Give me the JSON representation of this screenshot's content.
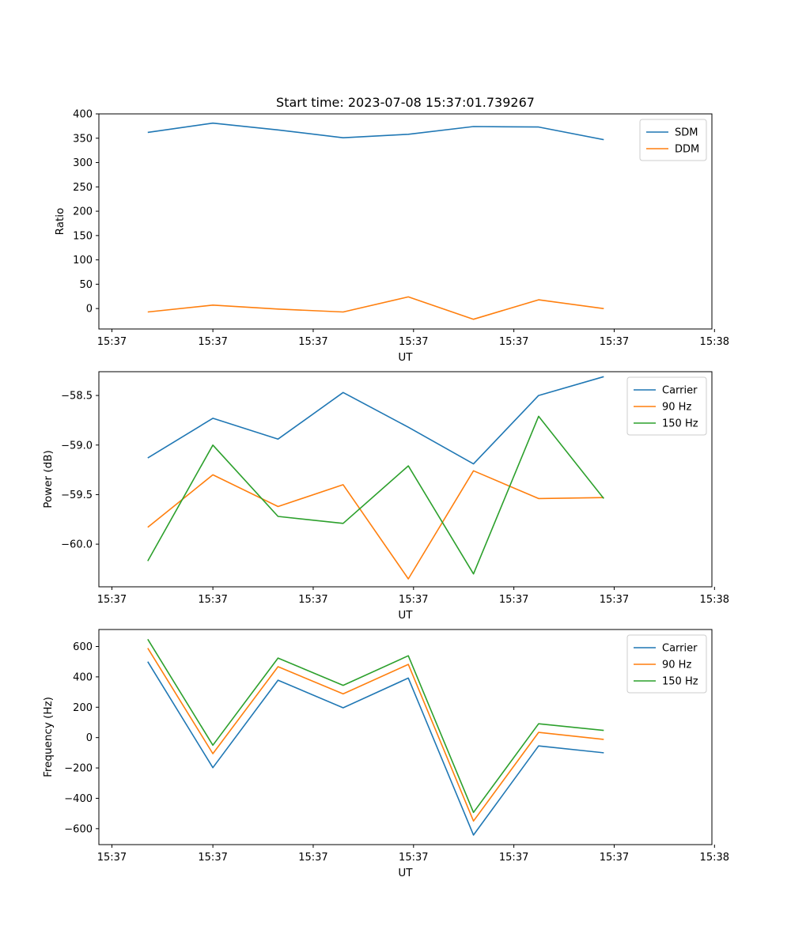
{
  "chart_data": [
    {
      "type": "line",
      "title": "Start time: 2023-07-08 15:37:01.739267",
      "xlabel": "UT",
      "ylabel": "Ratio",
      "x_tick_labels": [
        "15:37",
        "15:37",
        "15:37",
        "15:37",
        "15:37",
        "15:37",
        "15:38"
      ],
      "x": [
        1,
        2,
        3,
        4,
        5,
        6,
        7,
        8
      ],
      "xlim": [
        0.25,
        9.66
      ],
      "ylim": [
        -42,
        400
      ],
      "yticks": [
        0,
        50,
        100,
        150,
        200,
        250,
        300,
        350,
        400
      ],
      "ytick_labels": [
        "0",
        "50",
        "100",
        "150",
        "200",
        "250",
        "300",
        "350",
        "400"
      ],
      "legend_position": "top-right",
      "series": [
        {
          "name": "SDM",
          "color": "#1f77b4",
          "values": [
            362,
            381,
            367,
            351,
            358,
            374,
            373,
            347
          ]
        },
        {
          "name": "DDM",
          "color": "#ff7f0e",
          "values": [
            -7,
            7,
            -1,
            -7,
            24,
            -22,
            18,
            0
          ]
        }
      ]
    },
    {
      "type": "line",
      "title": "",
      "xlabel": "UT",
      "ylabel": "Power (dB)",
      "x_tick_labels": [
        "15:37",
        "15:37",
        "15:37",
        "15:37",
        "15:37",
        "15:37",
        "15:38"
      ],
      "x": [
        1,
        2,
        3,
        4,
        5,
        6,
        7,
        8
      ],
      "xlim": [
        0.25,
        9.66
      ],
      "ylim": [
        -60.43,
        -58.26
      ],
      "yticks": [
        -60.0,
        -59.5,
        -59.0,
        -58.5
      ],
      "ytick_labels": [
        "−60.0",
        "−59.5",
        "−59.0",
        "−58.5"
      ],
      "legend_position": "top-right",
      "series": [
        {
          "name": "Carrier",
          "color": "#1f77b4",
          "values": [
            -59.13,
            -58.73,
            -58.94,
            -58.47,
            -58.82,
            -59.19,
            -58.5,
            -58.31
          ]
        },
        {
          "name": "90 Hz",
          "color": "#ff7f0e",
          "values": [
            -59.83,
            -59.3,
            -59.62,
            -59.4,
            -60.35,
            -59.26,
            -59.54,
            -59.53
          ]
        },
        {
          "name": "150 Hz",
          "color": "#2ca02c",
          "values": [
            -60.17,
            -59.0,
            -59.72,
            -59.79,
            -59.21,
            -60.3,
            -58.71,
            -59.54
          ]
        }
      ]
    },
    {
      "type": "line",
      "title": "",
      "xlabel": "UT",
      "ylabel": "Frequency (Hz)",
      "x_tick_labels": [
        "15:37",
        "15:37",
        "15:37",
        "15:37",
        "15:37",
        "15:37",
        "15:38"
      ],
      "x": [
        1,
        2,
        3,
        4,
        5,
        6,
        7,
        8
      ],
      "xlim": [
        0.25,
        9.66
      ],
      "ylim": [
        -705,
        712
      ],
      "yticks": [
        -600,
        -400,
        -200,
        0,
        200,
        400,
        600
      ],
      "ytick_labels": [
        "−600",
        "−400",
        "−200",
        "0",
        "200",
        "400",
        "600"
      ],
      "legend_position": "top-right",
      "series": [
        {
          "name": "Carrier",
          "color": "#1f77b4",
          "values": [
            500,
            -198,
            378,
            196,
            392,
            -642,
            -55,
            -100
          ]
        },
        {
          "name": "90 Hz",
          "color": "#ff7f0e",
          "values": [
            589,
            -106,
            467,
            288,
            482,
            -550,
            34,
            -12
          ]
        },
        {
          "name": "150 Hz",
          "color": "#2ca02c",
          "values": [
            648,
            -50,
            524,
            344,
            539,
            -493,
            91,
            47
          ]
        }
      ]
    }
  ]
}
